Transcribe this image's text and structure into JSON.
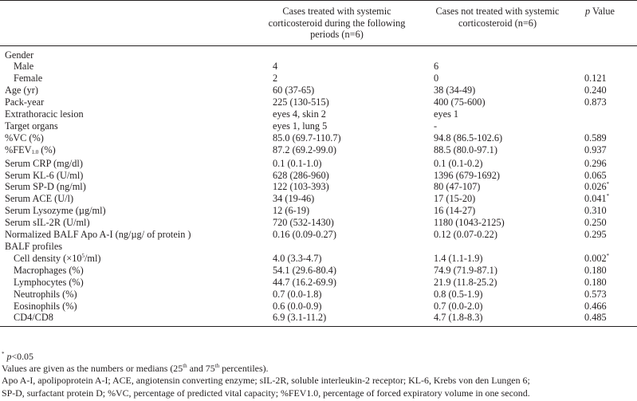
{
  "header": {
    "col1": "",
    "col2": "Cases treated with systemic corticosteroid during the following periods (n=6)",
    "col3": "Cases not treated with systemic corticosteroid (n=6)",
    "col4_italic": "p",
    "col4_rest": " Value"
  },
  "rows": [
    {
      "label": "Gender",
      "indent": false,
      "v1": "",
      "v2": "",
      "v3": ""
    },
    {
      "label": "Male",
      "indent": true,
      "v1": "4",
      "v2": "6",
      "v3": ""
    },
    {
      "label": "Female",
      "indent": true,
      "v1": "2",
      "v2": "0",
      "v3": "0.121"
    },
    {
      "label": "Age (yr)",
      "indent": false,
      "v1": "60 (37-65)",
      "v2": "38 (34-49)",
      "v3": "0.240"
    },
    {
      "label": "Pack-year",
      "indent": false,
      "v1": "225 (130-515)",
      "v2": "400 (75-600)",
      "v3": "0.873"
    },
    {
      "label": "Extrathoracic lesion",
      "indent": false,
      "v1": "eyes 4, skin 2",
      "v2": "eyes 1",
      "v3": ""
    },
    {
      "label": "Target organs",
      "indent": false,
      "v1": "eyes 1, lung 5",
      "v2": "-",
      "v3": ""
    },
    {
      "label": "%VC (%)",
      "indent": false,
      "v1": "85.0 (69.7-110.7)",
      "v2": "94.8 (86.5-102.6)",
      "v3": "0.589"
    },
    {
      "label": "%FEV",
      "label_sub": "1.0",
      "label_after": " (%)",
      "indent": false,
      "v1": "87.2 (69.2-99.0)",
      "v2": "88.5 (80.0-97.1)",
      "v3": "0.937"
    },
    {
      "label": "Serum CRP (mg/dl)",
      "indent": false,
      "v1": "0.1 (0.1-1.0)",
      "v2": "0.1 (0.1-0.2)",
      "v3": "0.296"
    },
    {
      "label": "Serum KL-6 (U/ml)",
      "indent": false,
      "v1": "628 (286-960)",
      "v2": "1396 (679-1692)",
      "v3": "0.065"
    },
    {
      "label": "Serum SP-D (ng/ml)",
      "indent": false,
      "v1": "122 (103-393)",
      "v2": "80 (47-107)",
      "v3": "0.026",
      "sig": "*"
    },
    {
      "label": "Serum ACE (U/l)",
      "indent": false,
      "v1": "34 (19-46)",
      "v2": "17 (15-20)",
      "v3": "0.041",
      "sig": "*"
    },
    {
      "label": "Serum Lysozyme (µg/ml)",
      "indent": false,
      "v1": "12 (6-19)",
      "v2": "16 (14-27)",
      "v3": "0.310"
    },
    {
      "label": "Serum sIL-2R (U/ml)",
      "indent": false,
      "v1": "720 (532-1430)",
      "v2": "1180 (1043-2125)",
      "v3": "0.250"
    },
    {
      "label": "Normalized BALF Apo A-I (ng/µg/ of protein )",
      "indent": false,
      "v1": "0.16 (0.09-0.27)",
      "v2": "0.12 (0.07-0.22)",
      "v3": "0.295"
    },
    {
      "label": "BALF profiles",
      "indent": false,
      "v1": "",
      "v2": "",
      "v3": ""
    },
    {
      "label": "Cell density (×10",
      "label_sup": "5",
      "label_after": "/ml)",
      "indent": true,
      "v1": "4.0 (3.3-4.7)",
      "v2": "1.4 (1.1-1.9)",
      "v3": "0.002",
      "sig": "*"
    },
    {
      "label": "Macrophages (%)",
      "indent": true,
      "v1": "54.1 (29.6-80.4)",
      "v2": "74.9 (71.9-87.1)",
      "v3": "0.180"
    },
    {
      "label": "Lymphocytes (%)",
      "indent": true,
      "v1": "44.7 (16.2-69.9)",
      "v2": "21.9 (11.8-25.2)",
      "v3": "0.180"
    },
    {
      "label": "Neutrophils (%)",
      "indent": true,
      "v1": "0.7 (0.0-1.8)",
      "v2": "0.8 (0.5-1.9)",
      "v3": "0.573"
    },
    {
      "label": "Eosinophils (%)",
      "indent": true,
      "v1": "0.6 (0.0-0.9)",
      "v2": "0.7 (0.0-2.0)",
      "v3": "0.466"
    },
    {
      "label": "CD4/CD8",
      "indent": true,
      "v1": "6.9 (3.1-11.2)",
      "v2": "4.7 (1.8-8.3)",
      "v3": "0.485"
    }
  ],
  "notes": {
    "sig_mark": "*",
    "sig_p": "p",
    "sig_rest": "<0.05",
    "values_a": "Values are given as the numbers or medians (25",
    "values_th1": "th",
    "values_b": " and 75",
    "values_th2": "th",
    "values_c": " percentiles).",
    "abbr1": "Apo A-I, apolipoprotein A-I; ACE, angiotensin converting enzyme; sIL-2R, soluble interleukin-2 receptor; KL-6, Krebs von den Lungen 6;",
    "abbr2": "SP-D, surfactant protein D; %VC, percentage of predicted vital capacity; %FEV1.0, percentage of forced expiratory volume in one second."
  }
}
